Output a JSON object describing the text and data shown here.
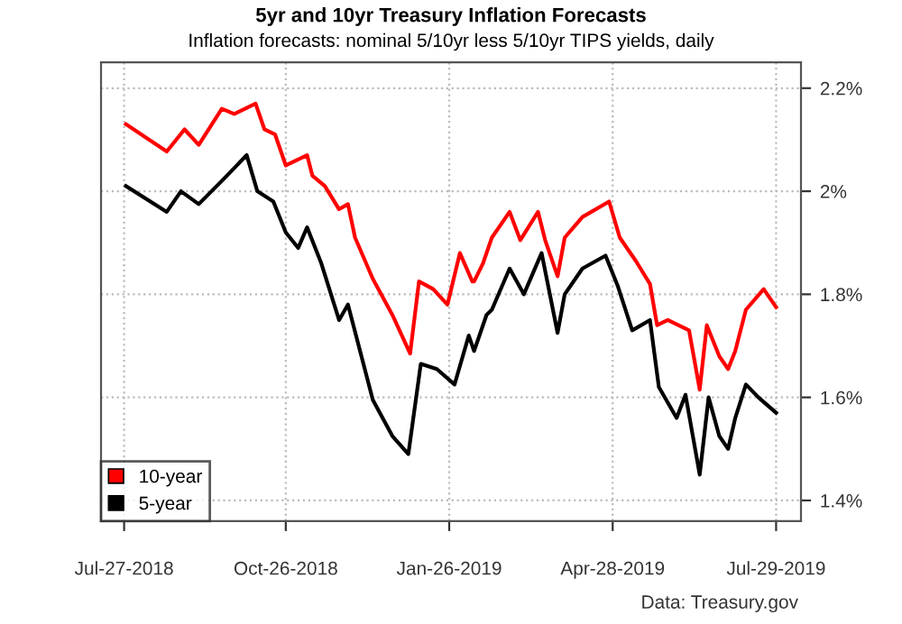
{
  "chart_data": {
    "type": "line",
    "title": "5yr and 10yr Treasury Inflation Forecasts",
    "subtitle": "Inflation forecasts: nominal 5/10yr less 5/10yr TIPS yields, daily",
    "xlim": [
      "2018-07-14",
      "2019-08-12"
    ],
    "xticks": [
      {
        "value": "2018-07-27",
        "label": "Jul-27-2018"
      },
      {
        "value": "2018-10-26",
        "label": "Oct-26-2018"
      },
      {
        "value": "2019-01-26",
        "label": "Jan-26-2019"
      },
      {
        "value": "2019-04-28",
        "label": "Apr-28-2019"
      },
      {
        "value": "2019-07-29",
        "label": "Jul-29-2019"
      }
    ],
    "ylim": [
      1.36,
      2.25
    ],
    "yticks": [
      {
        "value": 1.4,
        "label": "1.4%"
      },
      {
        "value": 1.6,
        "label": "1.6%"
      },
      {
        "value": 1.8,
        "label": "1.8%"
      },
      {
        "value": 2.0,
        "label": "2%"
      },
      {
        "value": 2.2,
        "label": "2.2%"
      }
    ],
    "grid": true,
    "legend": "bottom left",
    "line_style": "solid",
    "annotations": [
      "Data: Treasury.gov"
    ],
    "series": [
      {
        "name": "10-year",
        "color": "#ff0000",
        "x": [
          "2018-07-28",
          "2018-08-20",
          "2018-08-30",
          "2018-09-07",
          "2018-09-20",
          "2018-09-27",
          "2018-10-09",
          "2018-10-14",
          "2018-10-20",
          "2018-10-26",
          "2018-11-07",
          "2018-11-10",
          "2018-11-17",
          "2018-11-25",
          "2018-11-30",
          "2018-12-04",
          "2018-12-14",
          "2018-12-25",
          "2019-01-04",
          "2019-01-09",
          "2019-01-17",
          "2019-01-25",
          "2019-02-01",
          "2019-02-08",
          "2019-02-09",
          "2019-02-14",
          "2019-02-19",
          "2019-03-01",
          "2019-03-07",
          "2019-03-17",
          "2019-03-21",
          "2019-03-28",
          "2019-04-01",
          "2019-04-11",
          "2019-04-26",
          "2019-05-02",
          "2019-05-11",
          "2019-05-19",
          "2019-05-23",
          "2019-05-29",
          "2019-06-10",
          "2019-06-16",
          "2019-06-20",
          "2019-06-27",
          "2019-07-02",
          "2019-07-06",
          "2019-07-12",
          "2019-07-22",
          "2019-07-29"
        ],
        "values": [
          2.13,
          2.077,
          2.12,
          2.09,
          2.16,
          2.15,
          2.17,
          2.12,
          2.11,
          2.05,
          2.07,
          2.03,
          2.01,
          1.965,
          1.975,
          1.91,
          1.83,
          1.76,
          1.685,
          1.825,
          1.81,
          1.78,
          1.88,
          1.825,
          1.825,
          1.86,
          1.91,
          1.96,
          1.905,
          1.96,
          1.905,
          1.835,
          1.91,
          1.95,
          1.98,
          1.91,
          1.865,
          1.82,
          1.74,
          1.75,
          1.73,
          1.615,
          1.74,
          1.68,
          1.655,
          1.69,
          1.77,
          1.81,
          1.775
        ]
      },
      {
        "name": "5-year",
        "color": "#000000",
        "x": [
          "2018-07-28",
          "2018-08-20",
          "2018-08-28",
          "2018-09-07",
          "2018-09-20",
          "2018-09-27",
          "2018-10-04",
          "2018-10-10",
          "2018-10-19",
          "2018-10-26",
          "2018-11-02",
          "2018-11-07",
          "2018-11-15",
          "2018-11-25",
          "2018-11-30",
          "2018-12-14",
          "2018-12-25",
          "2019-01-03",
          "2019-01-10",
          "2019-01-19",
          "2019-01-29",
          "2019-02-06",
          "2019-02-09",
          "2019-02-16",
          "2019-02-19",
          "2019-03-01",
          "2019-03-09",
          "2019-03-19",
          "2019-03-28",
          "2019-04-01",
          "2019-04-11",
          "2019-04-24",
          "2019-05-01",
          "2019-05-09",
          "2019-05-19",
          "2019-05-24",
          "2019-06-03",
          "2019-06-08",
          "2019-06-16",
          "2019-06-21",
          "2019-06-27",
          "2019-07-02",
          "2019-07-06",
          "2019-07-12",
          "2019-07-19",
          "2019-07-29"
        ],
        "values": [
          2.01,
          1.96,
          2.0,
          1.975,
          2.02,
          2.045,
          2.07,
          2.0,
          1.98,
          1.92,
          1.89,
          1.93,
          1.86,
          1.75,
          1.78,
          1.595,
          1.525,
          1.49,
          1.665,
          1.655,
          1.625,
          1.72,
          1.69,
          1.76,
          1.77,
          1.85,
          1.8,
          1.88,
          1.725,
          1.8,
          1.85,
          1.875,
          1.815,
          1.73,
          1.75,
          1.62,
          1.56,
          1.605,
          1.45,
          1.6,
          1.525,
          1.5,
          1.56,
          1.625,
          1.6,
          1.57
        ]
      }
    ]
  }
}
